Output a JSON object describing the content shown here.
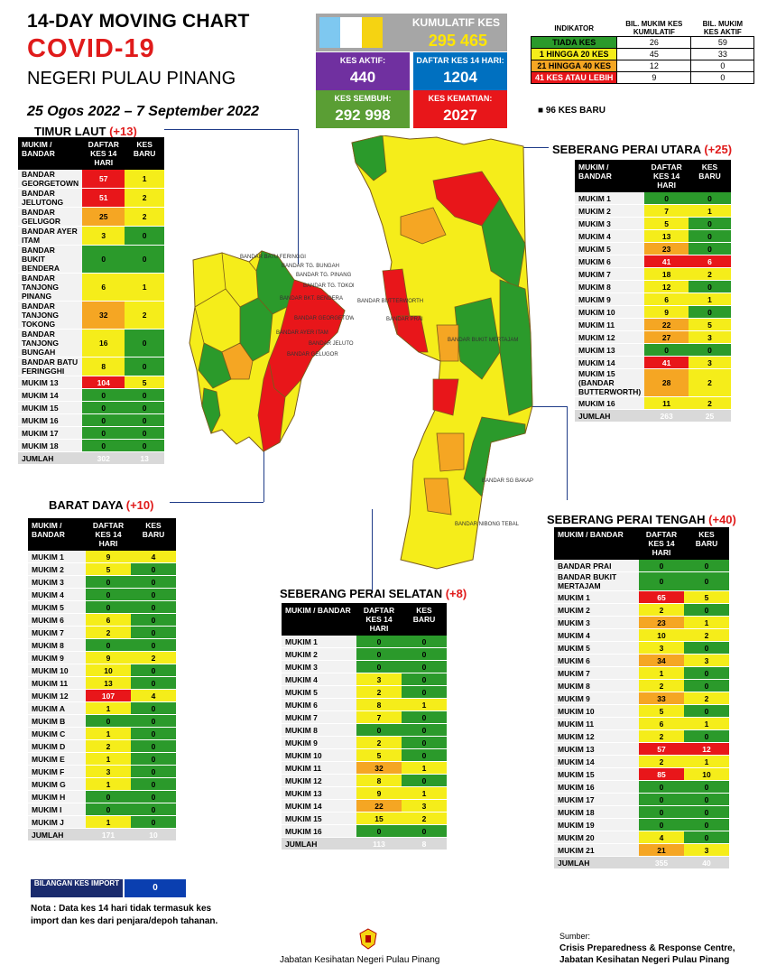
{
  "header": {
    "line1": "14-DAY MOVING CHART",
    "line2": "COVID-19",
    "line3": "NEGERI PULAU PINANG",
    "date_range": "25 Ogos 2022 – 7 September 2022"
  },
  "summary": {
    "kumulatif_label": "KUMULATIF KES",
    "kumulatif_value": "295 465",
    "aktif_label": "KES AKTIF:",
    "aktif_value": "440",
    "daftar_label": "DAFTAR KES 14 HARI:",
    "daftar_value": "1204",
    "sembuh_label": "KES SEMBUH:",
    "sembuh_value": "292 998",
    "kematian_label": "KES KEMATIAN:",
    "kematian_value": "2027"
  },
  "indicator": {
    "h_indikator": "INDIKATOR",
    "h_kumulatif": "BIL. MUKIM KES KUMULATIF",
    "h_aktif": "BIL. MUKIM KES AKTIF",
    "rows": [
      {
        "label": "TIADA KES",
        "kum": "26",
        "akt": "59",
        "color": "#2b9a2b"
      },
      {
        "label": "1 HINGGA 20 KES",
        "kum": "45",
        "akt": "33",
        "color": "#f5ed1a"
      },
      {
        "label": "21 HINGGA 40 KES",
        "kum": "12",
        "akt": "0",
        "color": "#f5a623"
      },
      {
        "label": "41 KES ATAU LEBIH",
        "kum": "9",
        "akt": "0",
        "color": "#e8161a"
      }
    ],
    "new_cases_note": "96 KES BARU"
  },
  "headers": {
    "mukim": "MUKIM / BANDAR",
    "daftar": "DAFTAR KES 14 HARI",
    "baru": "KES BARU"
  },
  "sections": {
    "timur_laut": {
      "name": "TIMUR LAUT",
      "delta": "(+13)",
      "rows": [
        [
          "BANDAR GEORGETOWN",
          "57",
          "1",
          "r",
          "y"
        ],
        [
          "BANDAR JELUTONG",
          "51",
          "2",
          "r",
          "y"
        ],
        [
          "BANDAR GELUGOR",
          "25",
          "2",
          "o",
          "y"
        ],
        [
          "BANDAR AYER ITAM",
          "3",
          "0",
          "y",
          "g"
        ],
        [
          "BANDAR BUKIT BENDERA",
          "0",
          "0",
          "g",
          "g"
        ],
        [
          "BANDAR TANJONG PINANG",
          "6",
          "1",
          "y",
          "y"
        ],
        [
          "BANDAR TANJONG TOKONG",
          "32",
          "2",
          "o",
          "y"
        ],
        [
          "BANDAR TANJONG BUNGAH",
          "16",
          "0",
          "y",
          "g"
        ],
        [
          "BANDAR BATU FERINGGHI",
          "8",
          "0",
          "y",
          "g"
        ],
        [
          "MUKIM 13",
          "104",
          "5",
          "r",
          "y"
        ],
        [
          "MUKIM 14",
          "0",
          "0",
          "g",
          "g"
        ],
        [
          "MUKIM 15",
          "0",
          "0",
          "g",
          "g"
        ],
        [
          "MUKIM 16",
          "0",
          "0",
          "g",
          "g"
        ],
        [
          "MUKIM 17",
          "0",
          "0",
          "g",
          "g"
        ],
        [
          "MUKIM 18",
          "0",
          "0",
          "g",
          "g"
        ]
      ],
      "total": [
        "JUMLAH",
        "302",
        "13"
      ]
    },
    "barat_daya": {
      "name": "BARAT DAYA",
      "delta": "(+10)",
      "rows": [
        [
          "MUKIM 1",
          "9",
          "4",
          "y",
          "y"
        ],
        [
          "MUKIM 2",
          "5",
          "0",
          "y",
          "g"
        ],
        [
          "MUKIM 3",
          "0",
          "0",
          "g",
          "g"
        ],
        [
          "MUKIM 4",
          "0",
          "0",
          "g",
          "g"
        ],
        [
          "MUKIM 5",
          "0",
          "0",
          "g",
          "g"
        ],
        [
          "MUKIM 6",
          "6",
          "0",
          "y",
          "g"
        ],
        [
          "MUKIM 7",
          "2",
          "0",
          "y",
          "g"
        ],
        [
          "MUKIM 8",
          "0",
          "0",
          "g",
          "g"
        ],
        [
          "MUKIM 9",
          "9",
          "2",
          "y",
          "y"
        ],
        [
          "MUKIM 10",
          "10",
          "0",
          "y",
          "g"
        ],
        [
          "MUKIM 11",
          "13",
          "0",
          "y",
          "g"
        ],
        [
          "MUKIM 12",
          "107",
          "4",
          "r",
          "y"
        ],
        [
          "MUKIM A",
          "1",
          "0",
          "y",
          "g"
        ],
        [
          "MUKIM B",
          "0",
          "0",
          "g",
          "g"
        ],
        [
          "MUKIM C",
          "1",
          "0",
          "y",
          "g"
        ],
        [
          "MUKIM D",
          "2",
          "0",
          "y",
          "g"
        ],
        [
          "MUKIM E",
          "1",
          "0",
          "y",
          "g"
        ],
        [
          "MUKIM F",
          "3",
          "0",
          "y",
          "g"
        ],
        [
          "MUKIM G",
          "1",
          "0",
          "y",
          "g"
        ],
        [
          "MUKIM H",
          "0",
          "0",
          "g",
          "g"
        ],
        [
          "MUKIM I",
          "0",
          "0",
          "g",
          "g"
        ],
        [
          "MUKIM J",
          "1",
          "0",
          "y",
          "g"
        ]
      ],
      "total": [
        "JUMLAH",
        "171",
        "10"
      ]
    },
    "spu": {
      "name": "SEBERANG PERAI UTARA",
      "delta": "(+25)",
      "rows": [
        [
          "MUKIM 1",
          "0",
          "0",
          "g",
          "g"
        ],
        [
          "MUKIM 2",
          "7",
          "1",
          "y",
          "y"
        ],
        [
          "MUKIM 3",
          "5",
          "0",
          "y",
          "g"
        ],
        [
          "MUKIM 4",
          "13",
          "0",
          "y",
          "g"
        ],
        [
          "MUKIM 5",
          "23",
          "0",
          "o",
          "g"
        ],
        [
          "MUKIM 6",
          "41",
          "6",
          "r",
          "r"
        ],
        [
          "MUKIM 7",
          "18",
          "2",
          "y",
          "y"
        ],
        [
          "MUKIM 8",
          "12",
          "0",
          "y",
          "g"
        ],
        [
          "MUKIM 9",
          "6",
          "1",
          "y",
          "y"
        ],
        [
          "MUKIM 10",
          "9",
          "0",
          "y",
          "g"
        ],
        [
          "MUKIM 11",
          "22",
          "5",
          "o",
          "y"
        ],
        [
          "MUKIM 12",
          "27",
          "3",
          "o",
          "y"
        ],
        [
          "MUKIM 13",
          "0",
          "0",
          "g",
          "g"
        ],
        [
          "MUKIM 14",
          "41",
          "3",
          "r",
          "y"
        ],
        [
          "MUKIM 15 (BANDAR BUTTERWORTH)",
          "28",
          "2",
          "o",
          "y"
        ],
        [
          "MUKIM 16",
          "11",
          "2",
          "y",
          "y"
        ]
      ],
      "total": [
        "JUMLAH",
        "263",
        "25"
      ]
    },
    "sps": {
      "name": "SEBERANG PERAI SELATAN",
      "delta": "(+8)",
      "rows": [
        [
          "MUKIM 1",
          "0",
          "0",
          "g",
          "g"
        ],
        [
          "MUKIM 2",
          "0",
          "0",
          "g",
          "g"
        ],
        [
          "MUKIM 3",
          "0",
          "0",
          "g",
          "g"
        ],
        [
          "MUKIM 4",
          "3",
          "0",
          "y",
          "g"
        ],
        [
          "MUKIM 5",
          "2",
          "0",
          "y",
          "g"
        ],
        [
          "MUKIM 6",
          "8",
          "1",
          "y",
          "y"
        ],
        [
          "MUKIM 7",
          "7",
          "0",
          "y",
          "g"
        ],
        [
          "MUKIM 8",
          "0",
          "0",
          "g",
          "g"
        ],
        [
          "MUKIM 9",
          "2",
          "0",
          "y",
          "g"
        ],
        [
          "MUKIM 10",
          "5",
          "0",
          "y",
          "g"
        ],
        [
          "MUKIM 11",
          "32",
          "1",
          "o",
          "y"
        ],
        [
          "MUKIM 12",
          "8",
          "0",
          "y",
          "g"
        ],
        [
          "MUKIM 13",
          "9",
          "1",
          "y",
          "y"
        ],
        [
          "MUKIM 14",
          "22",
          "3",
          "o",
          "y"
        ],
        [
          "MUKIM 15",
          "15",
          "2",
          "y",
          "y"
        ],
        [
          "MUKIM 16",
          "0",
          "0",
          "g",
          "g"
        ]
      ],
      "total": [
        "JUMLAH",
        "113",
        "8"
      ]
    },
    "spt": {
      "name": "SEBERANG PERAI TENGAH",
      "delta": "(+40)",
      "rows": [
        [
          "BANDAR PRAI",
          "0",
          "0",
          "g",
          "g"
        ],
        [
          "BANDAR BUKIT MERTAJAM",
          "0",
          "0",
          "g",
          "g"
        ],
        [
          "MUKIM 1",
          "65",
          "5",
          "r",
          "y"
        ],
        [
          "MUKIM 2",
          "2",
          "0",
          "y",
          "g"
        ],
        [
          "MUKIM 3",
          "23",
          "1",
          "o",
          "y"
        ],
        [
          "MUKIM 4",
          "10",
          "2",
          "y",
          "y"
        ],
        [
          "MUKIM 5",
          "3",
          "0",
          "y",
          "g"
        ],
        [
          "MUKIM 6",
          "34",
          "3",
          "o",
          "y"
        ],
        [
          "MUKIM 7",
          "1",
          "0",
          "y",
          "g"
        ],
        [
          "MUKIM 8",
          "2",
          "0",
          "y",
          "g"
        ],
        [
          "MUKIM 9",
          "33",
          "2",
          "o",
          "y"
        ],
        [
          "MUKIM 10",
          "5",
          "0",
          "y",
          "g"
        ],
        [
          "MUKIM 11",
          "6",
          "1",
          "y",
          "y"
        ],
        [
          "MUKIM 12",
          "2",
          "0",
          "y",
          "g"
        ],
        [
          "MUKIM 13",
          "57",
          "12",
          "r",
          "r"
        ],
        [
          "MUKIM 14",
          "2",
          "1",
          "y",
          "y"
        ],
        [
          "MUKIM 15",
          "85",
          "10",
          "r",
          "y"
        ],
        [
          "MUKIM 16",
          "0",
          "0",
          "g",
          "g"
        ],
        [
          "MUKIM 17",
          "0",
          "0",
          "g",
          "g"
        ],
        [
          "MUKIM 18",
          "0",
          "0",
          "g",
          "g"
        ],
        [
          "MUKIM 19",
          "0",
          "0",
          "g",
          "g"
        ],
        [
          "MUKIM 20",
          "4",
          "0",
          "y",
          "g"
        ],
        [
          "MUKIM 21",
          "21",
          "3",
          "o",
          "y"
        ]
      ],
      "total": [
        "JUMLAH",
        "355",
        "40"
      ]
    }
  },
  "map_labels": {
    "island": [
      "BANDAR BATU FERINGGI",
      "BANDAR TG. BUNGAH",
      "BANDAR TG. PINANG",
      "BANDAR TG. TOKONG",
      "BANDAR BKT. BENDERA",
      "BANDAR GEORGETOWN",
      "BANDAR AYER ITAM",
      "BANDAR JELUTONG",
      "BANDAR GELUGOR"
    ],
    "mainland": [
      "BANDAR BUTTERWORTH",
      "BANDAR PRAI",
      "BANDAR BUKIT MERTAJAM",
      "BANDAR SG BAKAP",
      "BANDAR NIBONG TEBAL"
    ]
  },
  "import": {
    "label": "BILANGAN KES IMPORT",
    "value": "0"
  },
  "note": "Nota : Data kes 14 hari tidak termasuk kes import dan kes dari penjara/depoh tahanan.",
  "footer": {
    "center": "Jabatan Kesihatan Negeri Pulau Pinang",
    "sumber": "Sumber:",
    "sumber_line1": "Crisis Preparedness & Response Centre,",
    "sumber_line2": "Jabatan Kesihatan Negeri Pulau Pinang"
  },
  "colors": {
    "green": "#2b9a2b",
    "yellow": "#f5ed1a",
    "orange": "#f5a623",
    "red": "#e8161a",
    "blue_box": "#7030a0",
    "daftar_box": "#0070c0",
    "sembuh_box": "#5a9e34",
    "kematian_box": "#e8161a"
  }
}
